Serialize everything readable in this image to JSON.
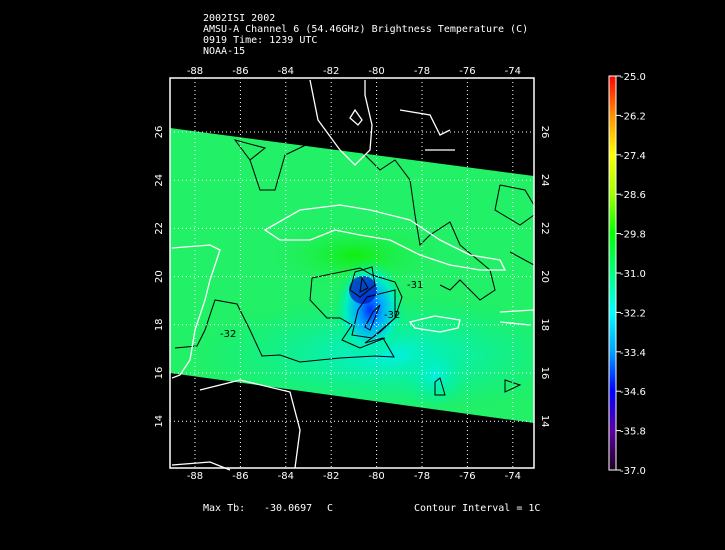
{
  "header": {
    "line1": "2002ISI 2002",
    "line2": "AMSU-A Channel 6 (54.46GHz) Brightness Temperature (C)",
    "line3": "0919 Time: 1239 UTC",
    "line4": "NOAA-15"
  },
  "footer": {
    "max_label": "Max Tb:",
    "max_value": "-30.0697",
    "max_unit": "C",
    "contour_interval": "Contour Interval = 1C"
  },
  "chart_data": {
    "type": "heatmap",
    "title": "AMSU-A Channel 6 (54.46GHz) Brightness Temperature (C)",
    "x_ticks": [
      -88,
      -86,
      -84,
      -82,
      -80,
      -78,
      -76,
      -74
    ],
    "y_ticks": [
      26,
      24,
      22,
      20,
      18,
      16,
      14
    ],
    "xlim": [
      -89.1,
      -72.9
    ],
    "ylim": [
      12.1,
      28.3
    ],
    "grid": true,
    "colorbar": {
      "range": [
        -37.0,
        -25.0
      ],
      "ticks": [
        "-25.0",
        "-26.2",
        "-27.4",
        "-28.6",
        "-29.8",
        "-31.0",
        "-32.2",
        "-33.4",
        "-34.6",
        "-35.8",
        "-37.0"
      ],
      "colors": [
        "#200020",
        "#5a00a0",
        "#0000ff",
        "#00a0ff",
        "#00ffff",
        "#00ff80",
        "#00ff00",
        "#a0ff00",
        "#ffff00",
        "#ff9000",
        "#ff0000"
      ]
    },
    "contour_labels": [
      "-31",
      "-32",
      "-32"
    ],
    "min_region": {
      "lon": -80.6,
      "lat": 19.7,
      "value_approx": -34.0
    },
    "background_value_approx": -30.5
  }
}
